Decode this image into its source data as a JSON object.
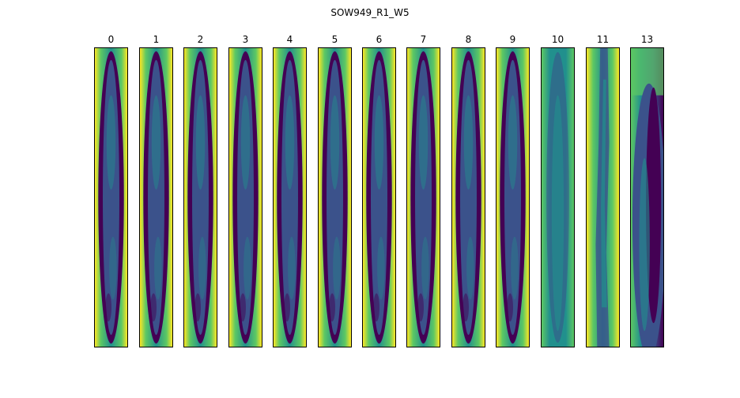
{
  "figure": {
    "title": "SOW949_R1_W5"
  },
  "panels": [
    {
      "label": "0",
      "style": "cell"
    },
    {
      "label": "1",
      "style": "cell"
    },
    {
      "label": "2",
      "style": "cell"
    },
    {
      "label": "3",
      "style": "cell"
    },
    {
      "label": "4",
      "style": "cell"
    },
    {
      "label": "5",
      "style": "cell"
    },
    {
      "label": "6",
      "style": "cell"
    },
    {
      "label": "7",
      "style": "cell"
    },
    {
      "label": "8",
      "style": "cell"
    },
    {
      "label": "9",
      "style": "cell"
    },
    {
      "label": "10",
      "style": "faint"
    },
    {
      "label": "11",
      "style": "noisy"
    },
    {
      "label": "13",
      "style": "irregular"
    }
  ],
  "colormap": {
    "name": "viridis",
    "dark": "#440154",
    "deep_blue": "#3b528b",
    "teal": "#21908d",
    "green": "#5dc863",
    "yellow": "#fde725"
  }
}
